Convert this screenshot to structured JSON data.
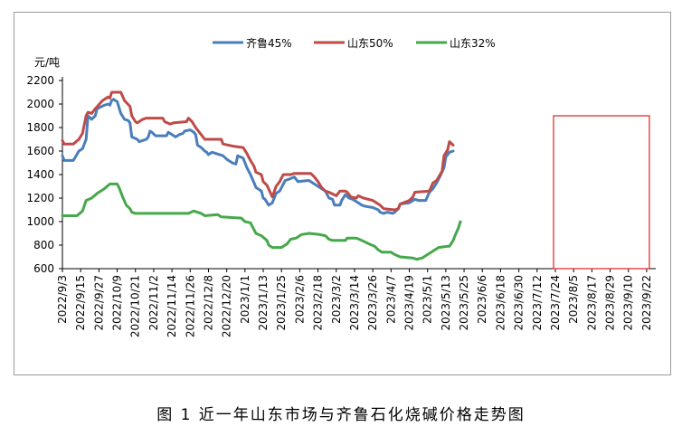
{
  "caption": "图 1  近一年山东市场与齐鲁石化烧碱价格走势图",
  "colors": {
    "qilu45": "#4a7ebb",
    "sd50": "#be4b48",
    "sd32": "#46a84a",
    "highlight": "#e03030",
    "grid": "#000000"
  },
  "chart_data": {
    "type": "line",
    "title": "",
    "ylabel": "元/吨",
    "ylim": [
      600,
      2200
    ],
    "yticks": [
      600,
      800,
      1000,
      1200,
      1400,
      1600,
      1800,
      2000,
      2200
    ],
    "grid": false,
    "legend_position": "top",
    "x_labels": [
      "2022/9/3",
      "2022/9/15",
      "2022/9/27",
      "2022/10/9",
      "2022/10/21",
      "2022/11/2",
      "2022/11/14",
      "2022/11/26",
      "2022/12/8",
      "2022/12/20",
      "2023/1/1",
      "2023/1/13",
      "2023/1/25",
      "2023/2/6",
      "2023/2/18",
      "2023/3/2",
      "2023/3/14",
      "2023/3/26",
      "2023/4/7",
      "2023/4/19",
      "2023/5/1",
      "2023/5/13",
      "2023/5/25",
      "2023/6/6",
      "2023/6/18",
      "2023/6/30",
      "2023/7/12",
      "2023/7/24",
      "2023/8/5",
      "2023/8/17",
      "2023/8/29",
      "2023/9/10",
      "2023/9/22"
    ],
    "highlight": {
      "x_start": "2023/7/24",
      "x_end": "2023/9/22"
    },
    "series": [
      {
        "name": "齐鲁45%",
        "color_key": "qilu45",
        "points": [
          [
            0,
            1560
          ],
          [
            0.1,
            1520
          ],
          [
            0.6,
            1520
          ],
          [
            0.9,
            1600
          ],
          [
            1.1,
            1620
          ],
          [
            1.3,
            1700
          ],
          [
            1.4,
            1900
          ],
          [
            1.6,
            1870
          ],
          [
            1.8,
            1900
          ],
          [
            1.9,
            1960
          ],
          [
            2.3,
            1990
          ],
          [
            2.5,
            2000
          ],
          [
            2.6,
            1990
          ],
          [
            2.7,
            2030
          ],
          [
            2.8,
            2040
          ],
          [
            3,
            2020
          ],
          [
            3.2,
            1920
          ],
          [
            3.4,
            1870
          ],
          [
            3.6,
            1860
          ],
          [
            3.7,
            1840
          ],
          [
            3.8,
            1720
          ],
          [
            4.1,
            1700
          ],
          [
            4.2,
            1680
          ],
          [
            4.4,
            1690
          ],
          [
            4.6,
            1700
          ],
          [
            4.7,
            1720
          ],
          [
            4.8,
            1770
          ],
          [
            4.9,
            1760
          ],
          [
            5.1,
            1730
          ],
          [
            5.7,
            1730
          ],
          [
            5.8,
            1760
          ],
          [
            6,
            1740
          ],
          [
            6.2,
            1720
          ],
          [
            6.4,
            1740
          ],
          [
            6.6,
            1750
          ],
          [
            6.7,
            1770
          ],
          [
            7,
            1780
          ],
          [
            7.2,
            1760
          ],
          [
            7.3,
            1740
          ],
          [
            7.4,
            1650
          ],
          [
            7.6,
            1630
          ],
          [
            7.8,
            1600
          ],
          [
            7.9,
            1590
          ],
          [
            8,
            1570
          ],
          [
            8.2,
            1590
          ],
          [
            8.6,
            1570
          ],
          [
            8.8,
            1560
          ],
          [
            9,
            1530
          ],
          [
            9.3,
            1500
          ],
          [
            9.5,
            1490
          ],
          [
            9.6,
            1560
          ],
          [
            9.9,
            1540
          ],
          [
            10.1,
            1460
          ],
          [
            10.3,
            1400
          ],
          [
            10.5,
            1330
          ],
          [
            10.6,
            1290
          ],
          [
            10.9,
            1260
          ],
          [
            11,
            1200
          ],
          [
            11.1,
            1190
          ],
          [
            11.3,
            1140
          ],
          [
            11.5,
            1160
          ],
          [
            11.7,
            1240
          ],
          [
            11.9,
            1260
          ],
          [
            12.2,
            1350
          ],
          [
            12.4,
            1360
          ],
          [
            12.7,
            1380
          ],
          [
            12.9,
            1340
          ],
          [
            13.5,
            1350
          ],
          [
            13.6,
            1340
          ],
          [
            14,
            1300
          ],
          [
            14.2,
            1280
          ],
          [
            14.4,
            1260
          ],
          [
            14.6,
            1200
          ],
          [
            14.8,
            1190
          ],
          [
            14.9,
            1140
          ],
          [
            15.2,
            1140
          ],
          [
            15.3,
            1180
          ],
          [
            15.5,
            1230
          ],
          [
            15.7,
            1200
          ],
          [
            15.9,
            1190
          ],
          [
            16.1,
            1170
          ],
          [
            16.4,
            1140
          ],
          [
            16.6,
            1130
          ],
          [
            17,
            1120
          ],
          [
            17.3,
            1100
          ],
          [
            17.4,
            1080
          ],
          [
            17.6,
            1070
          ],
          [
            17.8,
            1080
          ],
          [
            18.1,
            1070
          ],
          [
            18.2,
            1080
          ],
          [
            18.4,
            1110
          ],
          [
            18.5,
            1150
          ],
          [
            19,
            1160
          ],
          [
            19.3,
            1190
          ],
          [
            19.5,
            1180
          ],
          [
            19.9,
            1180
          ],
          [
            20.1,
            1250
          ],
          [
            20.3,
            1280
          ],
          [
            20.5,
            1330
          ],
          [
            20.7,
            1390
          ],
          [
            20.9,
            1460
          ],
          [
            21,
            1550
          ],
          [
            21.1,
            1570
          ],
          [
            21.2,
            1590
          ],
          [
            21.4,
            1600
          ]
        ]
      },
      {
        "name": "山东50%",
        "color_key": "sd50",
        "points": [
          [
            0,
            1690
          ],
          [
            0.1,
            1660
          ],
          [
            0.6,
            1660
          ],
          [
            0.9,
            1700
          ],
          [
            1.1,
            1750
          ],
          [
            1.3,
            1900
          ],
          [
            1.4,
            1930
          ],
          [
            1.6,
            1920
          ],
          [
            1.8,
            1960
          ],
          [
            2.2,
            2030
          ],
          [
            2.5,
            2060
          ],
          [
            2.6,
            2050
          ],
          [
            2.7,
            2100
          ],
          [
            3.2,
            2100
          ],
          [
            3.4,
            2030
          ],
          [
            3.7,
            1980
          ],
          [
            3.8,
            1900
          ],
          [
            4,
            1850
          ],
          [
            4.1,
            1840
          ],
          [
            4.4,
            1870
          ],
          [
            4.6,
            1880
          ],
          [
            4.8,
            1880
          ],
          [
            5.5,
            1880
          ],
          [
            5.6,
            1850
          ],
          [
            5.9,
            1830
          ],
          [
            6.1,
            1840
          ],
          [
            6.8,
            1850
          ],
          [
            6.9,
            1880
          ],
          [
            7.1,
            1850
          ],
          [
            7.3,
            1800
          ],
          [
            7.6,
            1740
          ],
          [
            7.8,
            1700
          ],
          [
            8.7,
            1700
          ],
          [
            8.8,
            1660
          ],
          [
            9.4,
            1640
          ],
          [
            9.9,
            1630
          ],
          [
            10.1,
            1580
          ],
          [
            10.3,
            1520
          ],
          [
            10.5,
            1470
          ],
          [
            10.6,
            1420
          ],
          [
            10.9,
            1400
          ],
          [
            11,
            1340
          ],
          [
            11.2,
            1310
          ],
          [
            11.5,
            1210
          ],
          [
            11.7,
            1300
          ],
          [
            11.9,
            1340
          ],
          [
            12.1,
            1400
          ],
          [
            12.5,
            1400
          ],
          [
            12.7,
            1410
          ],
          [
            13.6,
            1410
          ],
          [
            13.8,
            1380
          ],
          [
            14,
            1340
          ],
          [
            14.2,
            1290
          ],
          [
            14.4,
            1260
          ],
          [
            14.6,
            1250
          ],
          [
            15,
            1220
          ],
          [
            15.2,
            1260
          ],
          [
            15.5,
            1260
          ],
          [
            15.6,
            1250
          ],
          [
            15.8,
            1210
          ],
          [
            16.1,
            1200
          ],
          [
            16.2,
            1220
          ],
          [
            16.5,
            1200
          ],
          [
            17,
            1180
          ],
          [
            17.2,
            1160
          ],
          [
            17.4,
            1140
          ],
          [
            17.6,
            1110
          ],
          [
            18.2,
            1100
          ],
          [
            18.4,
            1110
          ],
          [
            18.5,
            1150
          ],
          [
            19,
            1180
          ],
          [
            19.2,
            1210
          ],
          [
            19.3,
            1250
          ],
          [
            20.1,
            1260
          ],
          [
            20.3,
            1330
          ],
          [
            20.5,
            1350
          ],
          [
            20.8,
            1430
          ],
          [
            20.9,
            1560
          ],
          [
            21.1,
            1610
          ],
          [
            21.2,
            1680
          ],
          [
            21.4,
            1650
          ]
        ]
      },
      {
        "name": "山东32%",
        "color_key": "sd32",
        "points": [
          [
            0,
            1050
          ],
          [
            0.8,
            1050
          ],
          [
            1.1,
            1090
          ],
          [
            1.3,
            1180
          ],
          [
            1.6,
            1200
          ],
          [
            1.9,
            1240
          ],
          [
            2.3,
            1280
          ],
          [
            2.6,
            1320
          ],
          [
            3,
            1320
          ],
          [
            3.1,
            1290
          ],
          [
            3.3,
            1210
          ],
          [
            3.5,
            1140
          ],
          [
            3.7,
            1110
          ],
          [
            3.8,
            1080
          ],
          [
            4,
            1070
          ],
          [
            6.9,
            1070
          ],
          [
            7.2,
            1090
          ],
          [
            7.6,
            1070
          ],
          [
            7.8,
            1050
          ],
          [
            8.5,
            1060
          ],
          [
            8.7,
            1040
          ],
          [
            9.8,
            1030
          ],
          [
            10,
            1000
          ],
          [
            10.3,
            990
          ],
          [
            10.4,
            960
          ],
          [
            10.6,
            900
          ],
          [
            10.9,
            880
          ],
          [
            11.2,
            840
          ],
          [
            11.3,
            800
          ],
          [
            11.5,
            780
          ],
          [
            12,
            780
          ],
          [
            12.3,
            810
          ],
          [
            12.5,
            850
          ],
          [
            12.8,
            860
          ],
          [
            13.1,
            890
          ],
          [
            13.5,
            900
          ],
          [
            14.1,
            890
          ],
          [
            14.4,
            880
          ],
          [
            14.6,
            850
          ],
          [
            14.8,
            840
          ],
          [
            15.5,
            840
          ],
          [
            15.6,
            860
          ],
          [
            16.1,
            860
          ],
          [
            16.4,
            840
          ],
          [
            16.8,
            810
          ],
          [
            17.1,
            790
          ],
          [
            17.3,
            760
          ],
          [
            17.5,
            740
          ],
          [
            18,
            740
          ],
          [
            18.2,
            720
          ],
          [
            18.5,
            700
          ],
          [
            19.2,
            690
          ],
          [
            19.4,
            680
          ],
          [
            19.7,
            690
          ],
          [
            19.8,
            700
          ],
          [
            20,
            720
          ],
          [
            20.4,
            760
          ],
          [
            20.6,
            780
          ],
          [
            21.1,
            790
          ],
          [
            21.2,
            790
          ],
          [
            21.4,
            840
          ],
          [
            21.5,
            880
          ],
          [
            21.7,
            950
          ],
          [
            21.8,
            1000
          ]
        ]
      }
    ]
  }
}
